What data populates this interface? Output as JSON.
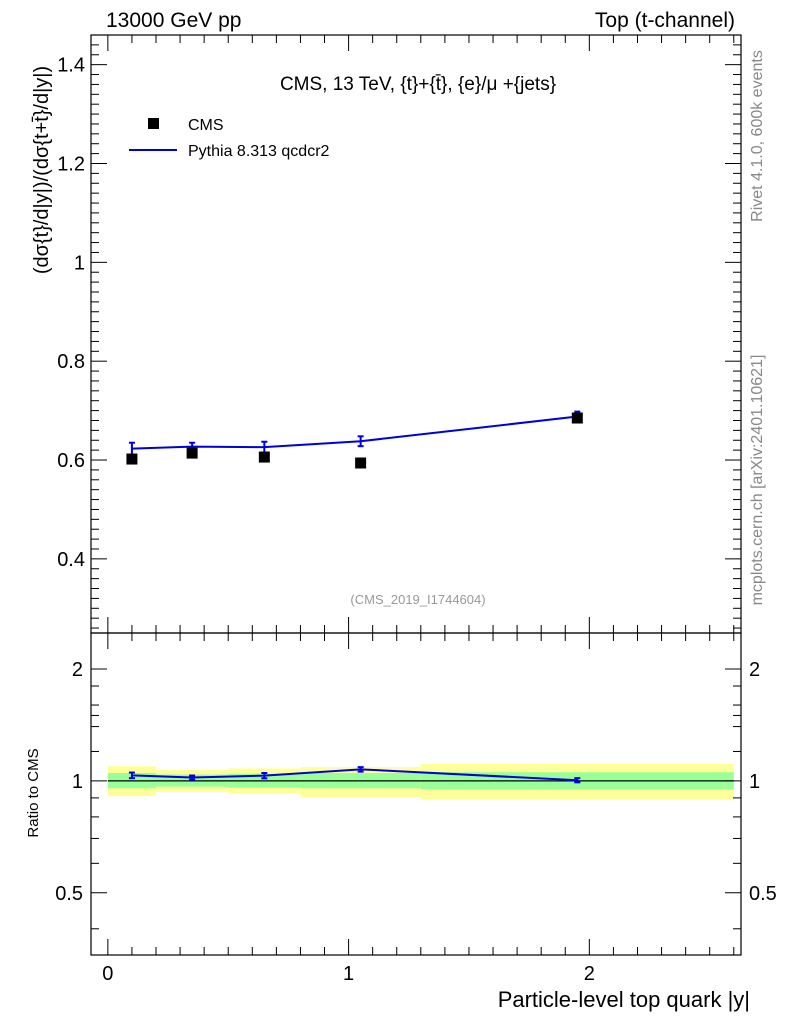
{
  "header": {
    "left": "13000 GeV pp",
    "right": "Top (t-channel)"
  },
  "side_labels": {
    "rivet": "Rivet 4.1.0,  600k events",
    "mcplots": "mcplots.cern.ch [arXiv:2401.10621]"
  },
  "colors": {
    "data": "#000000",
    "mc": "#0000dd",
    "band_inner": "#99ff99",
    "band_outer": "#ffff99",
    "watermark": "#999999"
  },
  "chart_data": [
    {
      "type": "scatter",
      "panel": "main",
      "title": "CMS, 13 TeV, {t}+{t̄}, {e}/μ +{jets}",
      "ylabel": "(dσ{t}/d|y|)/(dσ{t+t̄}/d|y|)",
      "ylim": [
        0.25,
        1.46
      ],
      "xlim": [
        -0.07,
        2.63
      ],
      "yticks": [
        0.4,
        0.6,
        0.8,
        1,
        1.2,
        1.4
      ],
      "ytick_labels": [
        "0.4",
        "0.6",
        "0.8",
        "1",
        "1.2",
        "1.4"
      ],
      "watermark": "(CMS_2019_I1744604)",
      "legend": [
        "CMS",
        "Pythia 8.313 qcdcr2"
      ],
      "series": [
        {
          "name": "CMS",
          "kind": "points",
          "x": [
            0.1,
            0.35,
            0.65,
            1.05,
            1.95
          ],
          "y": [
            0.602,
            0.614,
            0.606,
            0.594,
            0.685
          ]
        },
        {
          "name": "Pythia 8.313 qcdcr2",
          "kind": "line",
          "x": [
            0.1,
            0.35,
            0.65,
            1.05,
            1.95
          ],
          "y": [
            0.623,
            0.627,
            0.626,
            0.638,
            0.688
          ],
          "err": [
            0.012,
            0.008,
            0.011,
            0.01,
            0.01
          ]
        }
      ]
    },
    {
      "type": "line",
      "panel": "ratio",
      "ylabel": "Ratio to CMS",
      "xlabel": "Particle-level top quark |y|",
      "ylim": [
        0.34,
        2.5
      ],
      "xlim": [
        -0.07,
        2.63
      ],
      "yticks": [
        0.5,
        1,
        2
      ],
      "ytick_labels": [
        "0.5",
        "1",
        "2"
      ],
      "xticks": [
        0,
        1,
        2
      ],
      "xtick_labels": [
        "0",
        "1",
        "2"
      ],
      "bins": [
        [
          0.0,
          0.2
        ],
        [
          0.2,
          0.5
        ],
        [
          0.5,
          0.8
        ],
        [
          0.8,
          1.3
        ],
        [
          1.3,
          2.6
        ]
      ],
      "band_inner": [
        [
          0.955,
          1.05
        ],
        [
          0.965,
          1.04
        ],
        [
          0.96,
          1.045
        ],
        [
          0.955,
          1.05
        ],
        [
          0.95,
          1.055
        ]
      ],
      "band_outer": [
        [
          0.91,
          1.095
        ],
        [
          0.935,
          1.07
        ],
        [
          0.925,
          1.08
        ],
        [
          0.905,
          1.09
        ],
        [
          0.89,
          1.11
        ]
      ],
      "series": [
        {
          "name": "Pythia 8.313 qcdcr2",
          "x": [
            0.1,
            0.35,
            0.65,
            1.05,
            1.95
          ],
          "y": [
            1.035,
            1.021,
            1.033,
            1.074,
            1.004
          ],
          "err": [
            0.018,
            0.013,
            0.017,
            0.015,
            0.013
          ]
        }
      ]
    }
  ]
}
